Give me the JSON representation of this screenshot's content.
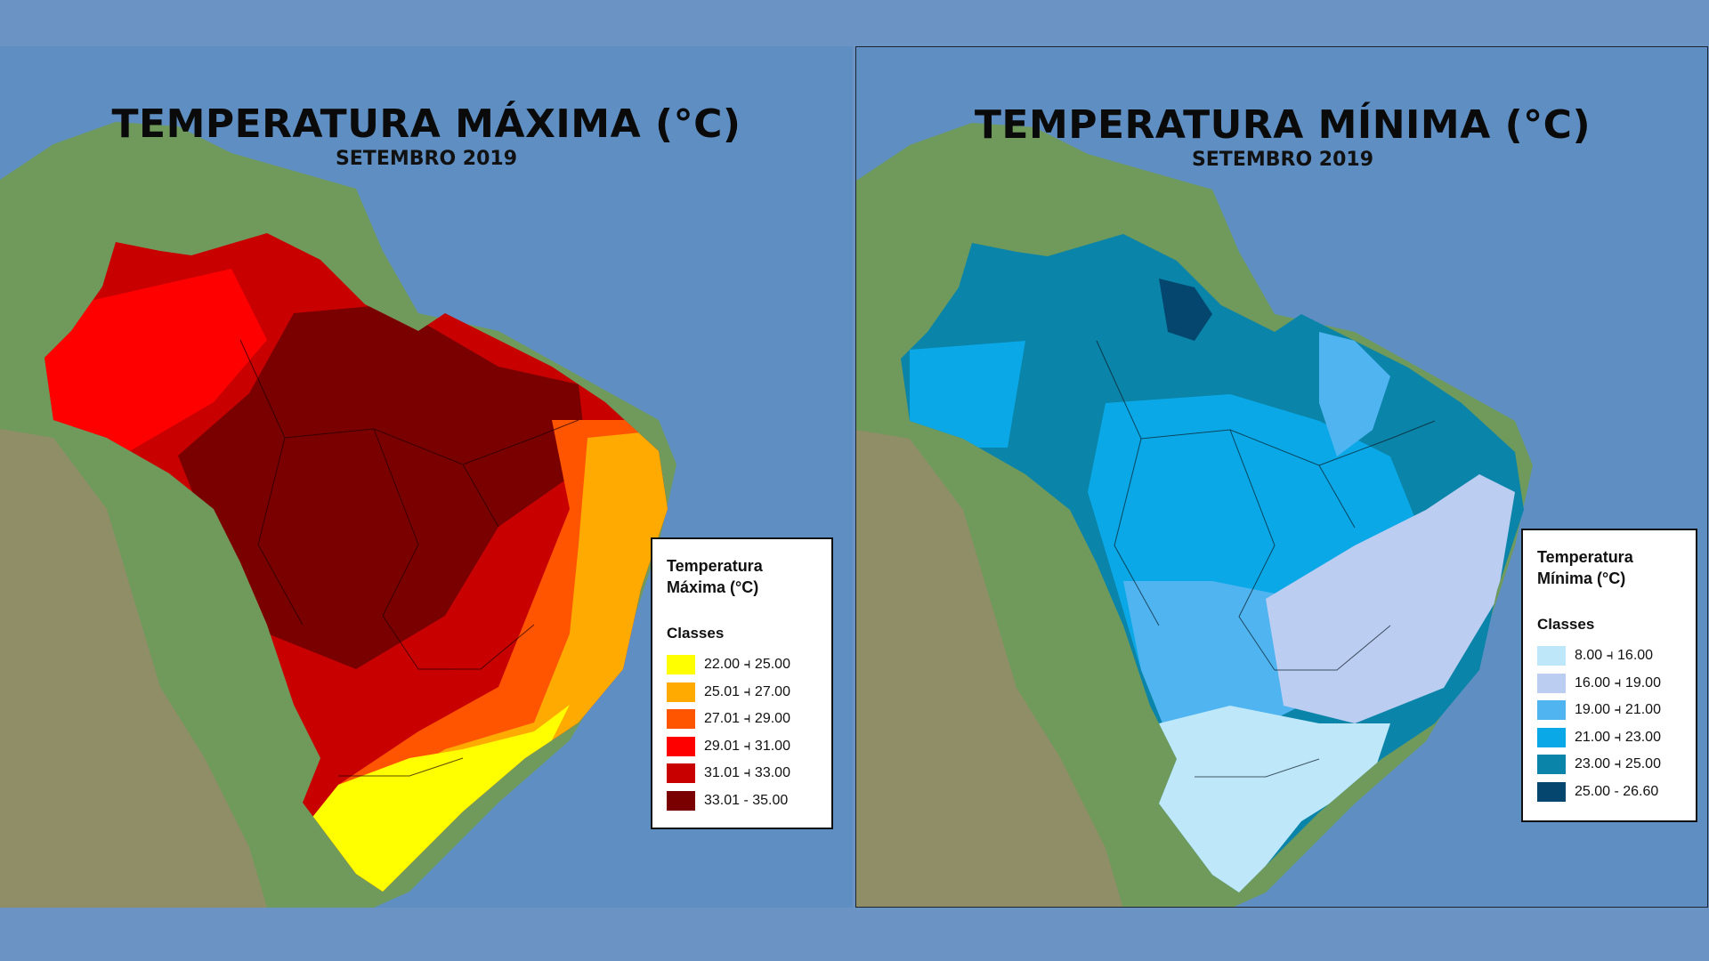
{
  "max_map": {
    "title": "TEMPERATURA MÁXIMA (°C)",
    "subtitle": "SETEMBRO 2019",
    "legend": {
      "title_line1": "Temperatura",
      "title_line2": "Máxima (°C)",
      "classes_label": "Classes",
      "classes": [
        {
          "label": "22.00 ⫞ 25.00",
          "color": "#ffff00"
        },
        {
          "label": "25.01 ⫞ 27.00",
          "color": "#ffaa00"
        },
        {
          "label": "27.01 ⫞ 29.00",
          "color": "#ff5500"
        },
        {
          "label": "29.01 ⫞ 31.00",
          "color": "#ff0000"
        },
        {
          "label": "31.01 ⫞ 33.00",
          "color": "#c80000"
        },
        {
          "label": "33.01 - 35.00",
          "color": "#7a0000"
        }
      ]
    }
  },
  "min_map": {
    "title": "TEMPERATURA MÍNIMA (°C)",
    "subtitle": "SETEMBRO 2019",
    "legend": {
      "title_line1": "Temperatura",
      "title_line2": "Mínima (°C)",
      "classes_label": "Classes",
      "classes": [
        {
          "label": "8.00 ⫞ 16.00",
          "color": "#bee8fa"
        },
        {
          "label": "16.00 ⫞ 19.00",
          "color": "#bccdf2"
        },
        {
          "label": "19.00 ⫞ 21.00",
          "color": "#4fb4f0"
        },
        {
          "label": "21.00 ⫞ 23.00",
          "color": "#0aa8e6"
        },
        {
          "label": "23.00 ⫞ 25.00",
          "color": "#0a84a8"
        },
        {
          "label": "25.00 - 26.60",
          "color": "#05466e"
        }
      ]
    }
  },
  "colors": {
    "ocean": "#5f8fc2",
    "land": "#6f9a5c",
    "andes": "#9b8a6a"
  }
}
